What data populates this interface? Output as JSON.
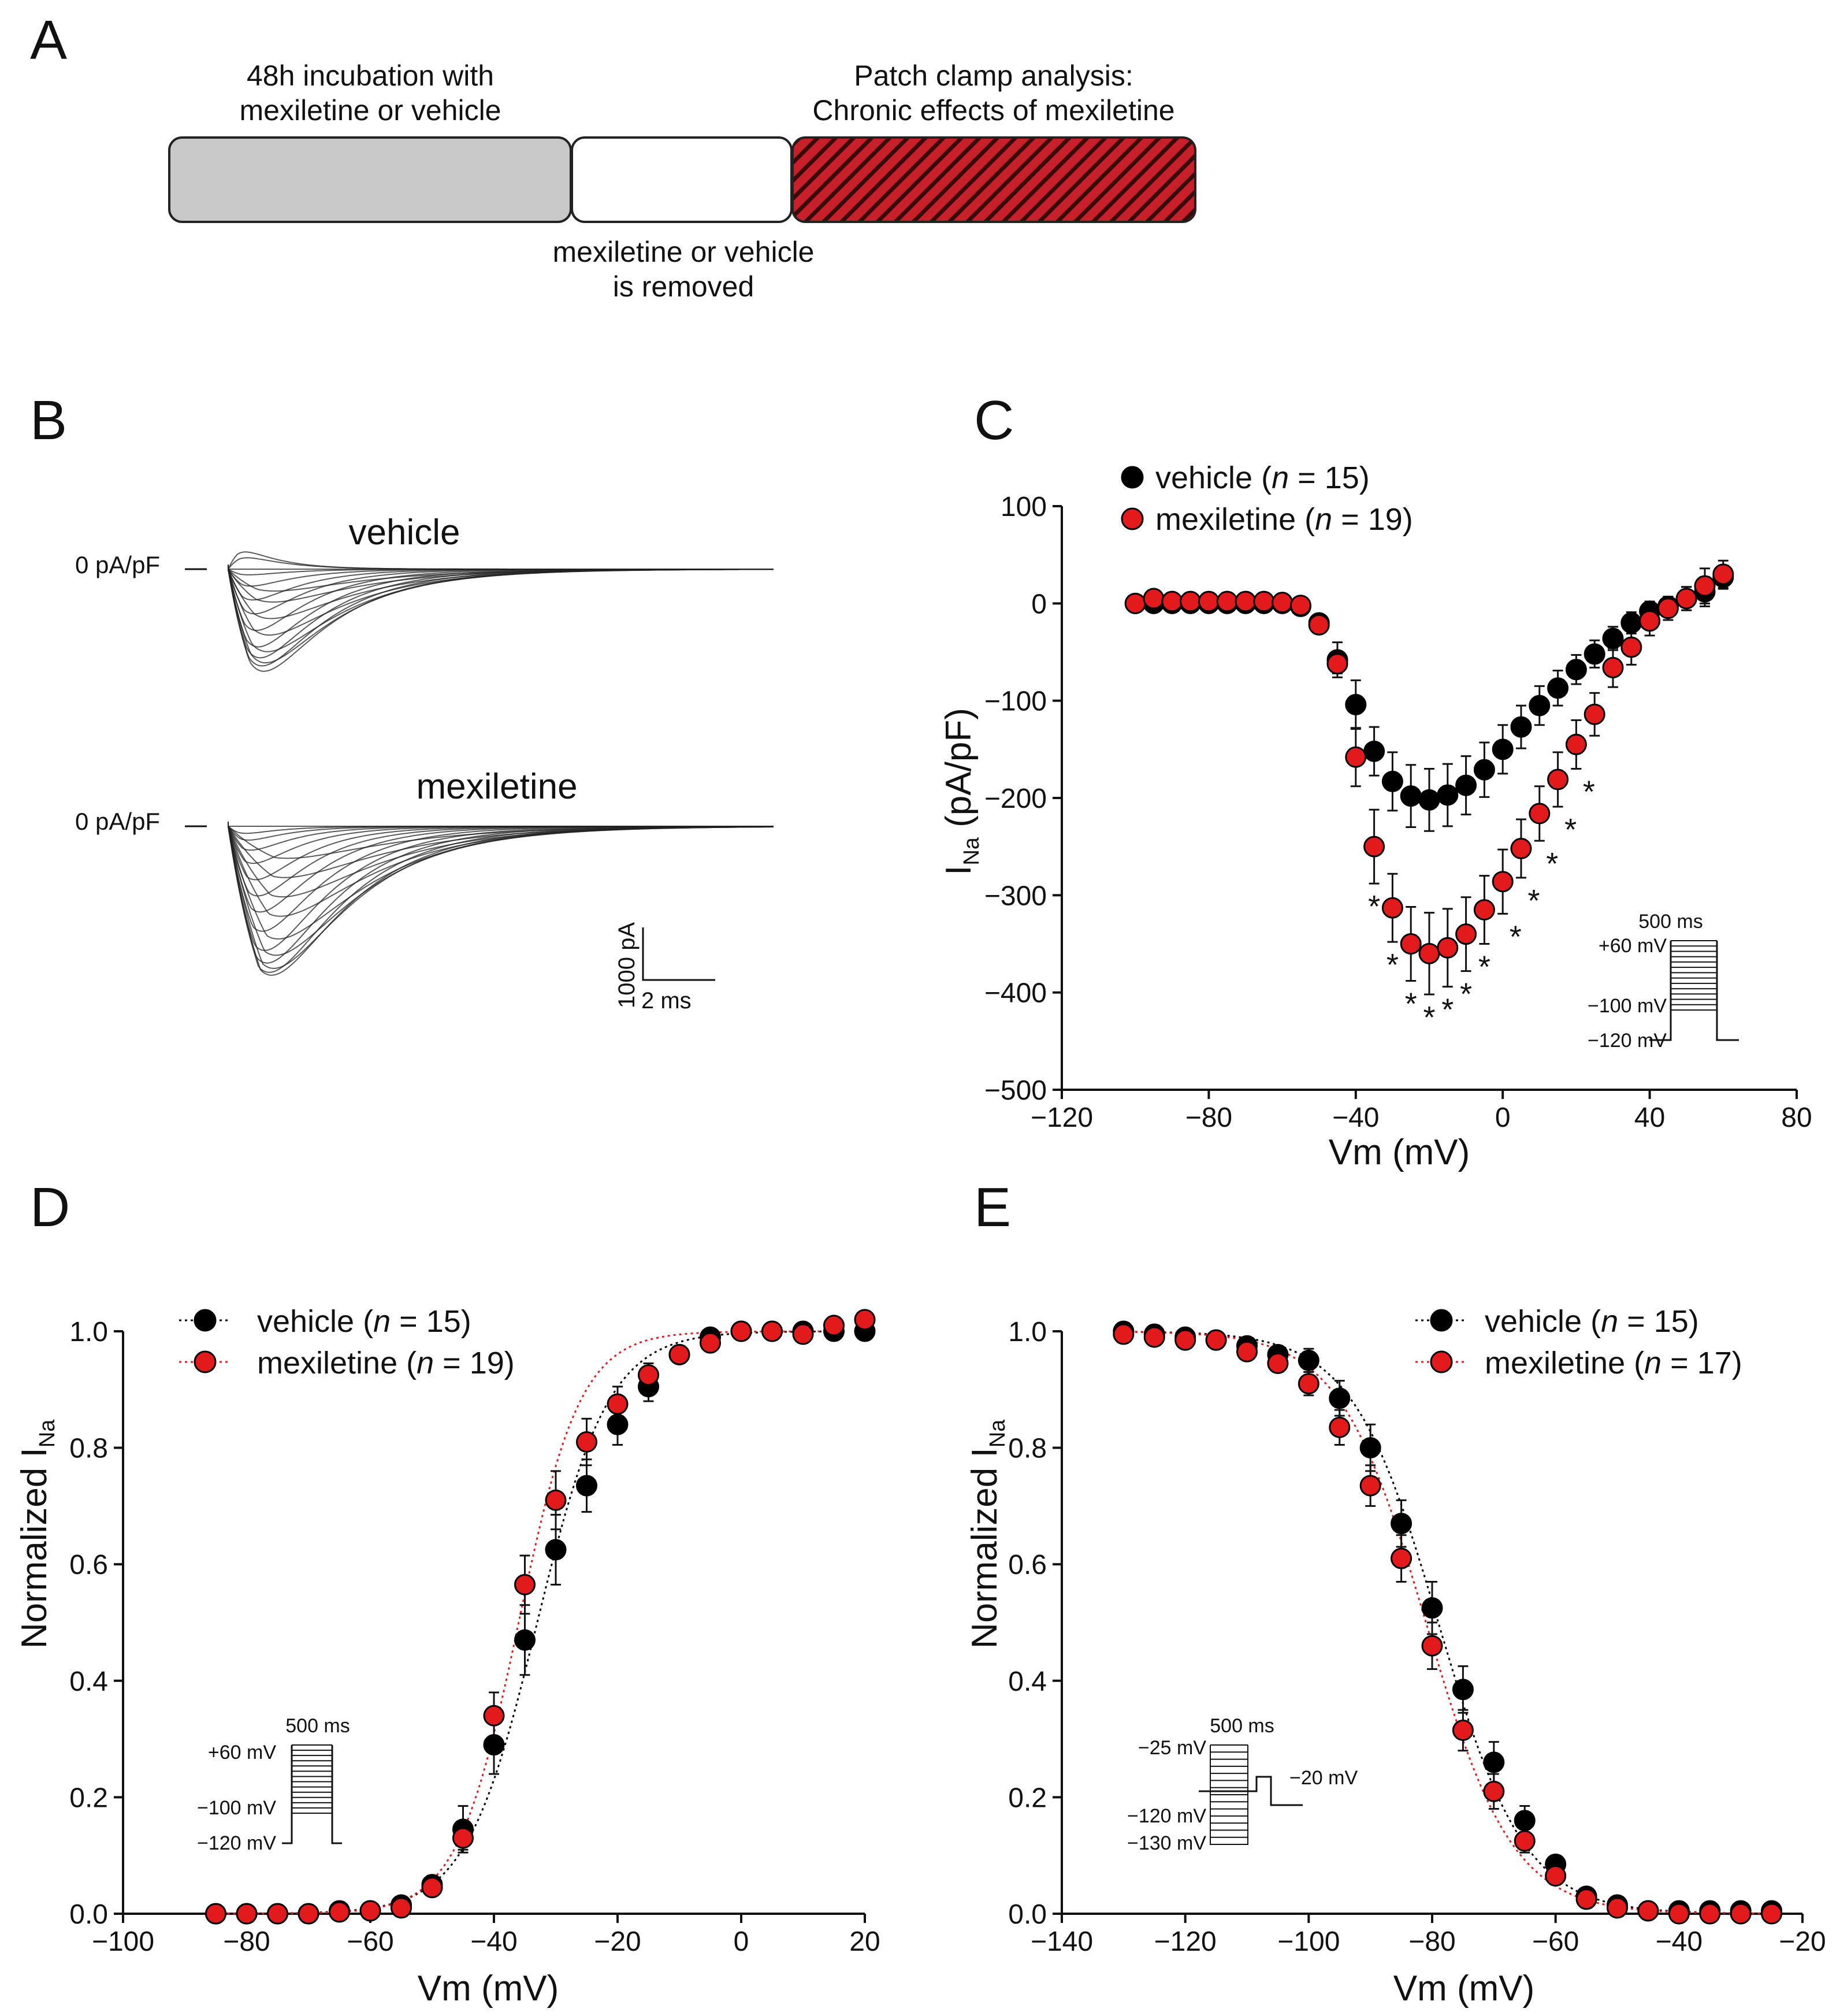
{
  "panels": {
    "A": "A",
    "B": "B",
    "C": "C",
    "D": "D",
    "E": "E"
  },
  "schematic": {
    "step1_line1": "48h incubation with",
    "step1_line2": "mexiletine or vehicle",
    "step2_line1": "mexiletine or vehicle",
    "step2_line2": "is removed",
    "step3_line1": "Patch clamp analysis:",
    "step3_line2": "Chronic effects of mexiletine",
    "colors": {
      "gray": "#c8c8c8",
      "hatch": "#c8202a"
    }
  },
  "traces": {
    "vehicle_label": "vehicle",
    "mexiletine_label": "mexiletine",
    "zero_label": "0 pA/pF",
    "scale_y": "1000 pA",
    "scale_x": "2 ms"
  },
  "protocol_act": {
    "top": "+60 mV",
    "mid": "−100 mV",
    "bot": "−120 mV",
    "time": "500 ms"
  },
  "protocol_inact": {
    "top": "−25 mV",
    "test": "−20 mV",
    "mid": "−120 mV",
    "bot": "−130 mV",
    "time": "500 ms"
  },
  "chart_data": [
    {
      "panel": "C",
      "type": "scatter",
      "title": "",
      "xlabel": "Vm (mV)",
      "ylabel_main": "I",
      "ylabel_sub": "Na",
      "ylabel_unit": " (pA/pF)",
      "xlim": [
        -120,
        80
      ],
      "ylim": [
        -500,
        100
      ],
      "xticks": [
        -120,
        -80,
        -40,
        0,
        40,
        80
      ],
      "yticks": [
        -500,
        -400,
        -300,
        -200,
        -100,
        0,
        100
      ],
      "legend_position": "top-left",
      "significance_marker": "*",
      "significant_x": [
        -35,
        -30,
        -25,
        -20,
        -15,
        -10,
        -5,
        0,
        5,
        10,
        15,
        20
      ],
      "series": [
        {
          "name": "vehicle",
          "n": "15",
          "color": "#000000",
          "x": [
            -100,
            -95,
            -90,
            -85,
            -80,
            -75,
            -70,
            -65,
            -60,
            -55,
            -50,
            -45,
            -40,
            -35,
            -30,
            -25,
            -20,
            -15,
            -10,
            -5,
            0,
            5,
            10,
            15,
            20,
            25,
            30,
            35,
            40,
            45,
            50,
            55,
            60
          ],
          "y": [
            0,
            0,
            0,
            0,
            0,
            0,
            0,
            0,
            0,
            -3,
            -20,
            -58,
            -104,
            -152,
            -183,
            -198,
            -202,
            -197,
            -187,
            -171,
            -150,
            -127,
            -105,
            -87,
            -68,
            -52,
            -36,
            -20,
            -8,
            -3,
            5,
            12,
            27
          ],
          "err": [
            0,
            0,
            0,
            0,
            0,
            0,
            0,
            0,
            0,
            2,
            4,
            18,
            25,
            25,
            30,
            32,
            32,
            32,
            30,
            28,
            25,
            22,
            20,
            18,
            15,
            14,
            12,
            11,
            10,
            10,
            12,
            15,
            12
          ]
        },
        {
          "name": "mexiletine",
          "n": "19",
          "color": "#e31a1c",
          "x": [
            -100,
            -95,
            -90,
            -85,
            -80,
            -75,
            -70,
            -65,
            -60,
            -55,
            -50,
            -45,
            -40,
            -35,
            -30,
            -25,
            -20,
            -15,
            -10,
            -5,
            0,
            5,
            10,
            15,
            20,
            25,
            30,
            35,
            40,
            45,
            50,
            55,
            60
          ],
          "y": [
            0,
            5,
            2,
            2,
            2,
            2,
            2,
            2,
            1,
            -2,
            -22,
            -62,
            -158,
            -250,
            -313,
            -350,
            -360,
            -354,
            -340,
            -315,
            -286,
            -252,
            -216,
            -181,
            -145,
            -114,
            -66,
            -45,
            -18,
            -5,
            5,
            18,
            30
          ],
          "err": [
            0,
            0,
            0,
            0,
            0,
            0,
            0,
            0,
            0,
            2,
            5,
            10,
            30,
            38,
            35,
            38,
            42,
            40,
            38,
            35,
            33,
            30,
            28,
            28,
            25,
            22,
            20,
            18,
            15,
            12,
            12,
            18,
            14
          ]
        }
      ]
    },
    {
      "panel": "D",
      "type": "scatter",
      "xlabel": "Vm (mV)",
      "ylabel_main": "Normalized I",
      "ylabel_sub": "Na",
      "xlim": [
        -100,
        20
      ],
      "ylim": [
        0,
        1.0
      ],
      "xticks": [
        -100,
        -80,
        -60,
        -40,
        -20,
        0,
        20
      ],
      "yticks": [
        0.0,
        0.2,
        0.4,
        0.6,
        0.8,
        1.0
      ],
      "legend_position": "top-left",
      "fit": "Boltzmann activation (dotted)",
      "series": [
        {
          "name": "vehicle",
          "n": "15",
          "color": "#000000",
          "v_half": -33,
          "slope": 5.8,
          "x": [
            -85,
            -80,
            -75,
            -70,
            -65,
            -60,
            -55,
            -50,
            -45,
            -40,
            -35,
            -30,
            -25,
            -20,
            -15,
            -10,
            -5,
            0,
            5,
            10,
            15,
            20
          ],
          "y": [
            0.0,
            0.0,
            0.0,
            0.0,
            0.005,
            0.005,
            0.015,
            0.05,
            0.145,
            0.29,
            0.47,
            0.625,
            0.735,
            0.84,
            0.905,
            0.96,
            0.99,
            1.0,
            1.0,
            1.0,
            1.0,
            1.0
          ],
          "err": [
            0,
            0,
            0,
            0,
            0,
            0,
            0.01,
            0.015,
            0.04,
            0.05,
            0.06,
            0.06,
            0.045,
            0.035,
            0.025,
            0.015,
            0.01,
            0,
            0,
            0,
            0,
            0
          ]
        },
        {
          "name": "mexiletine",
          "n": "19",
          "color": "#e31a1c",
          "v_half": -36,
          "slope": 5.0,
          "x": [
            -85,
            -80,
            -75,
            -70,
            -65,
            -60,
            -55,
            -50,
            -45,
            -40,
            -35,
            -30,
            -25,
            -20,
            -15,
            -10,
            -5,
            0,
            5,
            10,
            15,
            20
          ],
          "y": [
            0.0,
            0.0,
            0.0,
            0.0,
            0.003,
            0.005,
            0.01,
            0.045,
            0.13,
            0.34,
            0.565,
            0.71,
            0.81,
            0.875,
            0.925,
            0.96,
            0.98,
            1.0,
            1.0,
            0.995,
            1.01,
            1.02
          ],
          "err": [
            0,
            0,
            0,
            0,
            0,
            0,
            0.005,
            0.01,
            0.02,
            0.04,
            0.05,
            0.05,
            0.04,
            0.03,
            0.02,
            0.015,
            0.01,
            0,
            0,
            0,
            0,
            0
          ]
        }
      ]
    },
    {
      "panel": "E",
      "type": "scatter",
      "xlabel": "Vm (mV)",
      "ylabel_main": "Normalized I",
      "ylabel_sub": "Na",
      "xlim": [
        -140,
        -20
      ],
      "ylim": [
        0,
        1.0
      ],
      "xticks": [
        -140,
        -120,
        -100,
        -80,
        -60,
        -40,
        -20
      ],
      "yticks": [
        0.0,
        0.2,
        0.4,
        0.6,
        0.8,
        1.0
      ],
      "legend_position": "top-right",
      "fit": "Boltzmann inactivation (dotted)",
      "series": [
        {
          "name": "vehicle",
          "n": "15",
          "color": "#000000",
          "v_half": -79,
          "slope": 7.0,
          "x": [
            -130,
            -125,
            -120,
            -115,
            -110,
            -105,
            -100,
            -95,
            -90,
            -85,
            -80,
            -75,
            -70,
            -65,
            -60,
            -55,
            -50,
            -45,
            -40,
            -35,
            -30,
            -25
          ],
          "y": [
            1.0,
            0.995,
            0.99,
            0.985,
            0.975,
            0.96,
            0.95,
            0.885,
            0.8,
            0.67,
            0.525,
            0.385,
            0.26,
            0.16,
            0.085,
            0.03,
            0.015,
            0.005,
            0.005,
            0.005,
            0.005,
            0.005
          ],
          "err": [
            0,
            0,
            0,
            0.005,
            0.01,
            0.015,
            0.02,
            0.03,
            0.04,
            0.04,
            0.045,
            0.04,
            0.035,
            0.025,
            0.015,
            0.01,
            0.005,
            0,
            0,
            0,
            0,
            0
          ]
        },
        {
          "name": "mexiletine",
          "n": "17",
          "color": "#e31a1c",
          "v_half": -81,
          "slope": 7.0,
          "x": [
            -130,
            -125,
            -120,
            -115,
            -110,
            -105,
            -100,
            -95,
            -90,
            -85,
            -80,
            -75,
            -70,
            -65,
            -60,
            -55,
            -50,
            -45,
            -40,
            -35,
            -30,
            -25
          ],
          "y": [
            0.995,
            0.99,
            0.985,
            0.985,
            0.965,
            0.945,
            0.91,
            0.835,
            0.735,
            0.61,
            0.46,
            0.315,
            0.21,
            0.125,
            0.065,
            0.025,
            0.01,
            0.005,
            0.0,
            0.0,
            0.0,
            0.0
          ],
          "err": [
            0,
            0,
            0.005,
            0.005,
            0.01,
            0.015,
            0.02,
            0.03,
            0.035,
            0.04,
            0.04,
            0.035,
            0.03,
            0.02,
            0.015,
            0.01,
            0.005,
            0,
            0,
            0,
            0,
            0
          ]
        }
      ]
    }
  ]
}
